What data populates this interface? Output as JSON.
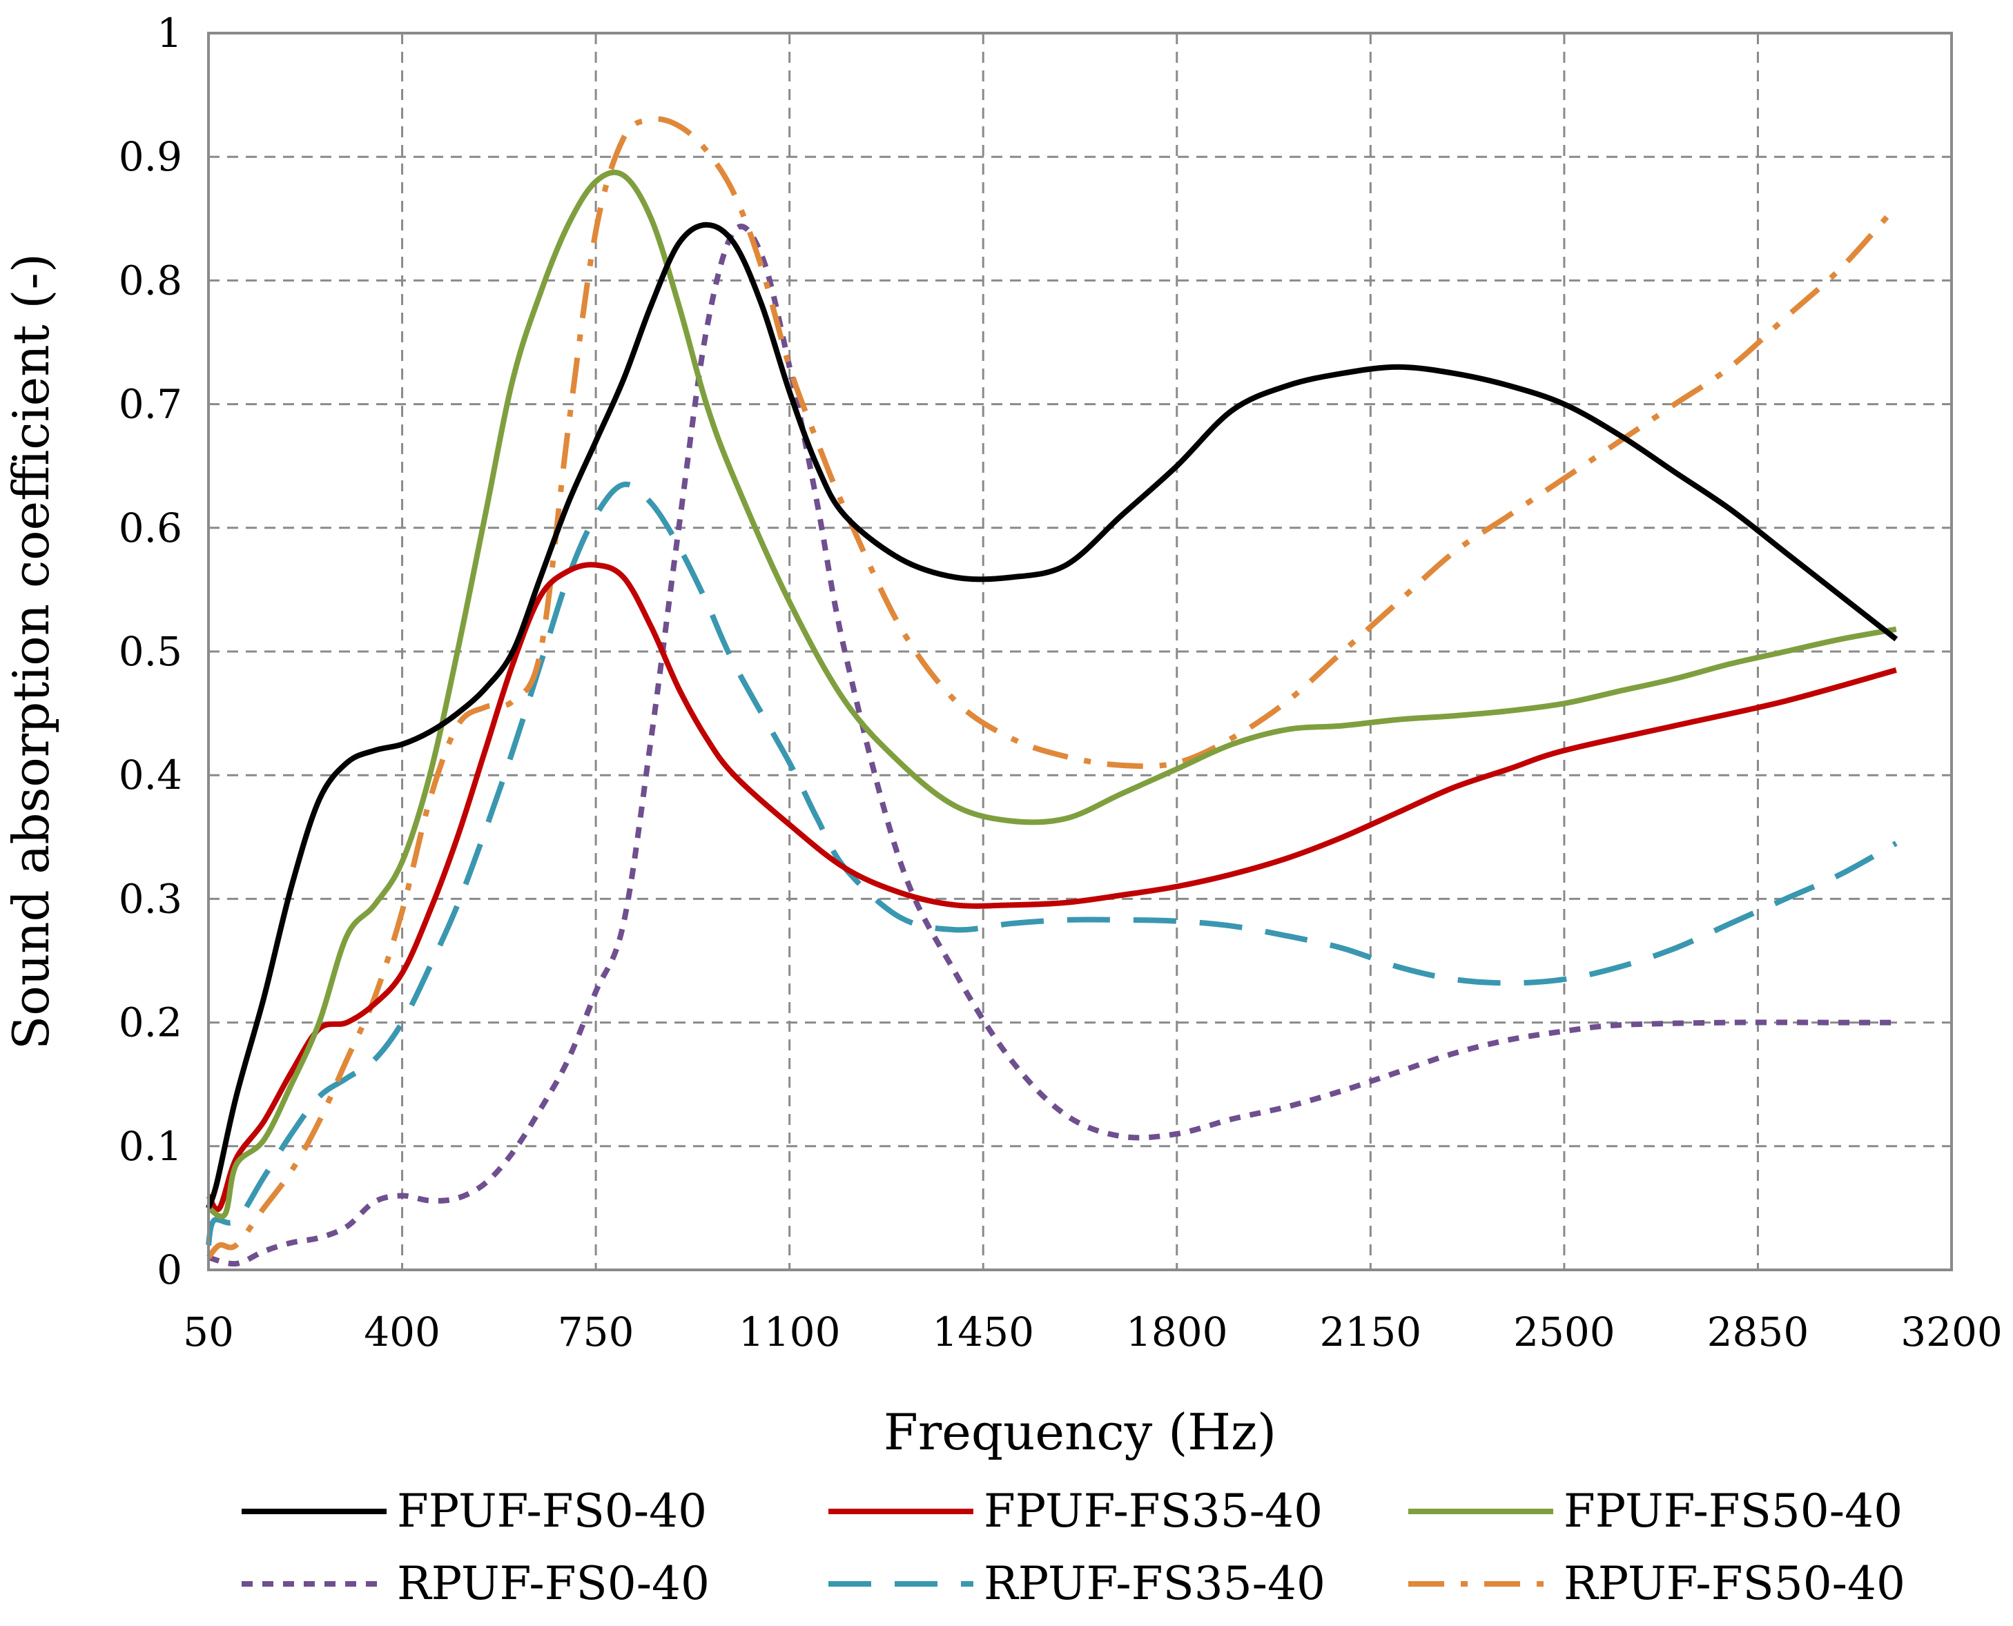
{
  "chart_data": {
    "type": "line",
    "title": "",
    "xlabel": "Frequency (Hz)",
    "ylabel": "Sound absorption coefficient (-)",
    "xlim": [
      50,
      3200
    ],
    "ylim": [
      0,
      1
    ],
    "x_ticks": [
      50,
      400,
      750,
      1100,
      1450,
      1800,
      2150,
      2500,
      2850,
      3200
    ],
    "x_tick_labels": [
      "50",
      "400",
      "750",
      "1100",
      "1450",
      "1800",
      "2150",
      "2500",
      "2850",
      "3200"
    ],
    "y_ticks": [
      0,
      0.1,
      0.2,
      0.3,
      0.4,
      0.5,
      0.6,
      0.7,
      0.8,
      0.9,
      1
    ],
    "y_tick_labels": [
      "0",
      "0.1",
      "0.2",
      "0.3",
      "0.4",
      "0.5",
      "0.6",
      "0.7",
      "0.8",
      "0.9",
      "1"
    ],
    "grid": true,
    "legend_position": "bottom",
    "series": [
      {
        "name": "FPUF-FS0-40",
        "color": "#000000",
        "dash": "solid",
        "points": [
          [
            50,
            0.05
          ],
          [
            65,
            0.07
          ],
          [
            100,
            0.14
          ],
          [
            150,
            0.22
          ],
          [
            200,
            0.31
          ],
          [
            250,
            0.38
          ],
          [
            300,
            0.41
          ],
          [
            350,
            0.42
          ],
          [
            400,
            0.425
          ],
          [
            450,
            0.435
          ],
          [
            500,
            0.45
          ],
          [
            550,
            0.47
          ],
          [
            600,
            0.5
          ],
          [
            650,
            0.56
          ],
          [
            700,
            0.62
          ],
          [
            750,
            0.67
          ],
          [
            800,
            0.72
          ],
          [
            850,
            0.78
          ],
          [
            900,
            0.83
          ],
          [
            950,
            0.845
          ],
          [
            1000,
            0.83
          ],
          [
            1050,
            0.78
          ],
          [
            1100,
            0.71
          ],
          [
            1150,
            0.65
          ],
          [
            1200,
            0.61
          ],
          [
            1300,
            0.575
          ],
          [
            1400,
            0.56
          ],
          [
            1500,
            0.56
          ],
          [
            1600,
            0.57
          ],
          [
            1700,
            0.61
          ],
          [
            1800,
            0.65
          ],
          [
            1900,
            0.695
          ],
          [
            2000,
            0.715
          ],
          [
            2100,
            0.725
          ],
          [
            2200,
            0.73
          ],
          [
            2300,
            0.725
          ],
          [
            2400,
            0.715
          ],
          [
            2500,
            0.7
          ],
          [
            2600,
            0.675
          ],
          [
            2700,
            0.645
          ],
          [
            2800,
            0.615
          ],
          [
            2900,
            0.58
          ],
          [
            3000,
            0.545
          ],
          [
            3100,
            0.51
          ]
        ]
      },
      {
        "name": "FPUF-FS35-40",
        "color": "#c00000",
        "dash": "solid",
        "points": [
          [
            50,
            0.06
          ],
          [
            70,
            0.05
          ],
          [
            100,
            0.09
          ],
          [
            150,
            0.12
          ],
          [
            200,
            0.16
          ],
          [
            250,
            0.195
          ],
          [
            300,
            0.2
          ],
          [
            350,
            0.215
          ],
          [
            400,
            0.24
          ],
          [
            450,
            0.29
          ],
          [
            500,
            0.35
          ],
          [
            550,
            0.42
          ],
          [
            600,
            0.49
          ],
          [
            650,
            0.545
          ],
          [
            700,
            0.565
          ],
          [
            750,
            0.57
          ],
          [
            800,
            0.56
          ],
          [
            850,
            0.52
          ],
          [
            900,
            0.47
          ],
          [
            950,
            0.43
          ],
          [
            1000,
            0.4
          ],
          [
            1100,
            0.36
          ],
          [
            1200,
            0.325
          ],
          [
            1300,
            0.305
          ],
          [
            1400,
            0.295
          ],
          [
            1500,
            0.295
          ],
          [
            1600,
            0.297
          ],
          [
            1700,
            0.303
          ],
          [
            1800,
            0.31
          ],
          [
            1900,
            0.32
          ],
          [
            2000,
            0.333
          ],
          [
            2100,
            0.35
          ],
          [
            2200,
            0.37
          ],
          [
            2300,
            0.39
          ],
          [
            2400,
            0.405
          ],
          [
            2500,
            0.42
          ],
          [
            2700,
            0.44
          ],
          [
            2900,
            0.46
          ],
          [
            3100,
            0.485
          ]
        ]
      },
      {
        "name": "FPUF-FS50-40",
        "color": "#7f9f3f",
        "dash": "solid",
        "points": [
          [
            50,
            0.05
          ],
          [
            80,
            0.045
          ],
          [
            100,
            0.085
          ],
          [
            150,
            0.105
          ],
          [
            200,
            0.15
          ],
          [
            250,
            0.2
          ],
          [
            300,
            0.27
          ],
          [
            350,
            0.295
          ],
          [
            400,
            0.33
          ],
          [
            450,
            0.4
          ],
          [
            500,
            0.5
          ],
          [
            550,
            0.61
          ],
          [
            600,
            0.72
          ],
          [
            650,
            0.79
          ],
          [
            700,
            0.845
          ],
          [
            750,
            0.88
          ],
          [
            800,
            0.885
          ],
          [
            850,
            0.85
          ],
          [
            900,
            0.78
          ],
          [
            950,
            0.7
          ],
          [
            1000,
            0.64
          ],
          [
            1100,
            0.54
          ],
          [
            1200,
            0.46
          ],
          [
            1300,
            0.41
          ],
          [
            1400,
            0.375
          ],
          [
            1500,
            0.363
          ],
          [
            1600,
            0.365
          ],
          [
            1700,
            0.385
          ],
          [
            1800,
            0.405
          ],
          [
            1900,
            0.425
          ],
          [
            2000,
            0.437
          ],
          [
            2100,
            0.44
          ],
          [
            2200,
            0.445
          ],
          [
            2300,
            0.448
          ],
          [
            2400,
            0.452
          ],
          [
            2500,
            0.458
          ],
          [
            2600,
            0.468
          ],
          [
            2700,
            0.478
          ],
          [
            2800,
            0.49
          ],
          [
            2900,
            0.5
          ],
          [
            3000,
            0.51
          ],
          [
            3100,
            0.518
          ]
        ]
      },
      {
        "name": "RPUF-FS0-40",
        "color": "#6f4f8f",
        "dash": "short",
        "points": [
          [
            50,
            0.01
          ],
          [
            100,
            0.005
          ],
          [
            150,
            0.015
          ],
          [
            200,
            0.022
          ],
          [
            250,
            0.026
          ],
          [
            300,
            0.035
          ],
          [
            350,
            0.055
          ],
          [
            400,
            0.06
          ],
          [
            450,
            0.056
          ],
          [
            500,
            0.058
          ],
          [
            550,
            0.07
          ],
          [
            600,
            0.095
          ],
          [
            650,
            0.13
          ],
          [
            700,
            0.17
          ],
          [
            750,
            0.225
          ],
          [
            800,
            0.28
          ],
          [
            850,
            0.43
          ],
          [
            900,
            0.6
          ],
          [
            950,
            0.76
          ],
          [
            1000,
            0.84
          ],
          [
            1050,
            0.82
          ],
          [
            1100,
            0.73
          ],
          [
            1150,
            0.62
          ],
          [
            1200,
            0.5
          ],
          [
            1300,
            0.33
          ],
          [
            1400,
            0.24
          ],
          [
            1500,
            0.17
          ],
          [
            1600,
            0.125
          ],
          [
            1700,
            0.108
          ],
          [
            1800,
            0.11
          ],
          [
            1900,
            0.122
          ],
          [
            2000,
            0.132
          ],
          [
            2100,
            0.145
          ],
          [
            2200,
            0.16
          ],
          [
            2300,
            0.175
          ],
          [
            2400,
            0.186
          ],
          [
            2500,
            0.193
          ],
          [
            2600,
            0.198
          ],
          [
            2800,
            0.2
          ],
          [
            3000,
            0.2
          ],
          [
            3100,
            0.2
          ]
        ]
      },
      {
        "name": "RPUF-FS35-40",
        "color": "#3a97b0",
        "dash": "long",
        "points": [
          [
            50,
            0.02
          ],
          [
            60,
            0.04
          ],
          [
            100,
            0.04
          ],
          [
            150,
            0.075
          ],
          [
            200,
            0.11
          ],
          [
            250,
            0.14
          ],
          [
            300,
            0.155
          ],
          [
            350,
            0.17
          ],
          [
            400,
            0.2
          ],
          [
            450,
            0.245
          ],
          [
            500,
            0.295
          ],
          [
            550,
            0.355
          ],
          [
            600,
            0.42
          ],
          [
            650,
            0.49
          ],
          [
            700,
            0.56
          ],
          [
            750,
            0.61
          ],
          [
            800,
            0.635
          ],
          [
            850,
            0.62
          ],
          [
            900,
            0.585
          ],
          [
            950,
            0.54
          ],
          [
            1000,
            0.49
          ],
          [
            1100,
            0.41
          ],
          [
            1150,
            0.365
          ],
          [
            1200,
            0.325
          ],
          [
            1300,
            0.285
          ],
          [
            1400,
            0.275
          ],
          [
            1500,
            0.28
          ],
          [
            1600,
            0.283
          ],
          [
            1700,
            0.283
          ],
          [
            1800,
            0.282
          ],
          [
            1900,
            0.278
          ],
          [
            2000,
            0.27
          ],
          [
            2100,
            0.26
          ],
          [
            2200,
            0.245
          ],
          [
            2300,
            0.235
          ],
          [
            2400,
            0.232
          ],
          [
            2500,
            0.235
          ],
          [
            2600,
            0.245
          ],
          [
            2700,
            0.26
          ],
          [
            2800,
            0.28
          ],
          [
            2900,
            0.3
          ],
          [
            3000,
            0.32
          ],
          [
            3100,
            0.345
          ]
        ]
      },
      {
        "name": "RPUF-FS50-40",
        "color": "#e0883a",
        "dash": "dashdot",
        "points": [
          [
            50,
            0.01
          ],
          [
            70,
            0.02
          ],
          [
            100,
            0.02
          ],
          [
            150,
            0.05
          ],
          [
            200,
            0.08
          ],
          [
            250,
            0.12
          ],
          [
            300,
            0.17
          ],
          [
            350,
            0.22
          ],
          [
            400,
            0.29
          ],
          [
            450,
            0.38
          ],
          [
            500,
            0.44
          ],
          [
            550,
            0.455
          ],
          [
            600,
            0.46
          ],
          [
            650,
            0.5
          ],
          [
            700,
            0.68
          ],
          [
            750,
            0.84
          ],
          [
            800,
            0.915
          ],
          [
            850,
            0.93
          ],
          [
            900,
            0.925
          ],
          [
            950,
            0.905
          ],
          [
            1000,
            0.87
          ],
          [
            1050,
            0.81
          ],
          [
            1100,
            0.73
          ],
          [
            1150,
            0.67
          ],
          [
            1200,
            0.615
          ],
          [
            1300,
            0.52
          ],
          [
            1400,
            0.46
          ],
          [
            1500,
            0.43
          ],
          [
            1600,
            0.415
          ],
          [
            1700,
            0.408
          ],
          [
            1800,
            0.41
          ],
          [
            1900,
            0.43
          ],
          [
            2000,
            0.46
          ],
          [
            2100,
            0.5
          ],
          [
            2200,
            0.54
          ],
          [
            2300,
            0.58
          ],
          [
            2400,
            0.61
          ],
          [
            2500,
            0.64
          ],
          [
            2600,
            0.67
          ],
          [
            2700,
            0.7
          ],
          [
            2800,
            0.73
          ],
          [
            2900,
            0.77
          ],
          [
            3000,
            0.81
          ],
          [
            3100,
            0.86
          ]
        ]
      }
    ]
  }
}
